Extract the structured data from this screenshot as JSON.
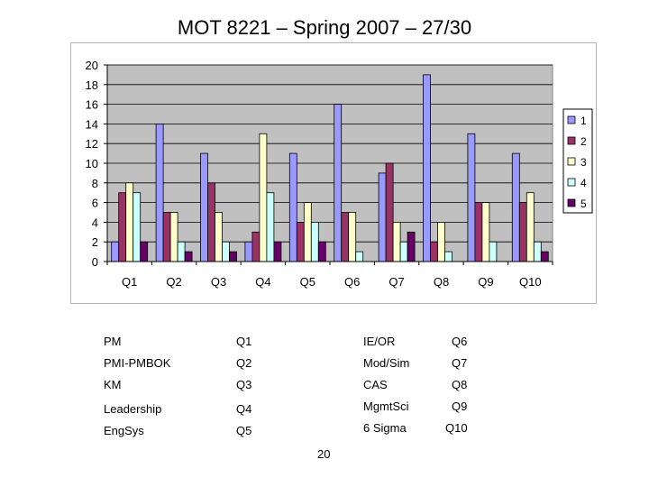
{
  "title": "MOT 8221 – Spring 2007 – 27/30",
  "chart_data": {
    "type": "bar",
    "categories": [
      "Q1",
      "Q2",
      "Q3",
      "Q4",
      "Q5",
      "Q6",
      "Q7",
      "Q8",
      "Q9",
      "Q10"
    ],
    "series": [
      {
        "name": "1",
        "color": "#9999ff",
        "values": [
          2,
          14,
          11,
          2,
          11,
          16,
          9,
          19,
          13,
          11
        ]
      },
      {
        "name": "2",
        "color": "#993366",
        "values": [
          7,
          5,
          8,
          3,
          4,
          5,
          10,
          2,
          6,
          6
        ]
      },
      {
        "name": "3",
        "color": "#ffffcc",
        "values": [
          8,
          5,
          5,
          13,
          6,
          5,
          4,
          4,
          6,
          7
        ]
      },
      {
        "name": "4",
        "color": "#ccffff",
        "values": [
          7,
          2,
          2,
          7,
          4,
          1,
          2,
          1,
          2,
          2
        ]
      },
      {
        "name": "5",
        "color": "#660066",
        "values": [
          2,
          1,
          1,
          2,
          2,
          0,
          3,
          0,
          0,
          1
        ]
      }
    ],
    "ylim": [
      0,
      20
    ],
    "yticks": [
      0,
      2,
      4,
      6,
      8,
      10,
      12,
      14,
      16,
      18,
      20
    ],
    "grid": true,
    "plot_background": "#c0c0c0",
    "legend_position": "right"
  },
  "key": {
    "left": [
      {
        "label": "PM",
        "code": "Q1"
      },
      {
        "label": "PMI-PMBOK",
        "code": "Q2"
      },
      {
        "label": "KM",
        "code": "Q3"
      },
      {
        "label": "Leadership",
        "code": "Q4"
      },
      {
        "label": "EngSys",
        "code": "Q5"
      }
    ],
    "right": [
      {
        "label": "IE/OR",
        "code": "Q6"
      },
      {
        "label": "Mod/Sim",
        "code": "Q7"
      },
      {
        "label": "CAS",
        "code": "Q8"
      },
      {
        "label": "MgmtSci",
        "code": "Q9"
      },
      {
        "label": "6 Sigma",
        "code": "Q10"
      }
    ]
  },
  "page_number": "20"
}
